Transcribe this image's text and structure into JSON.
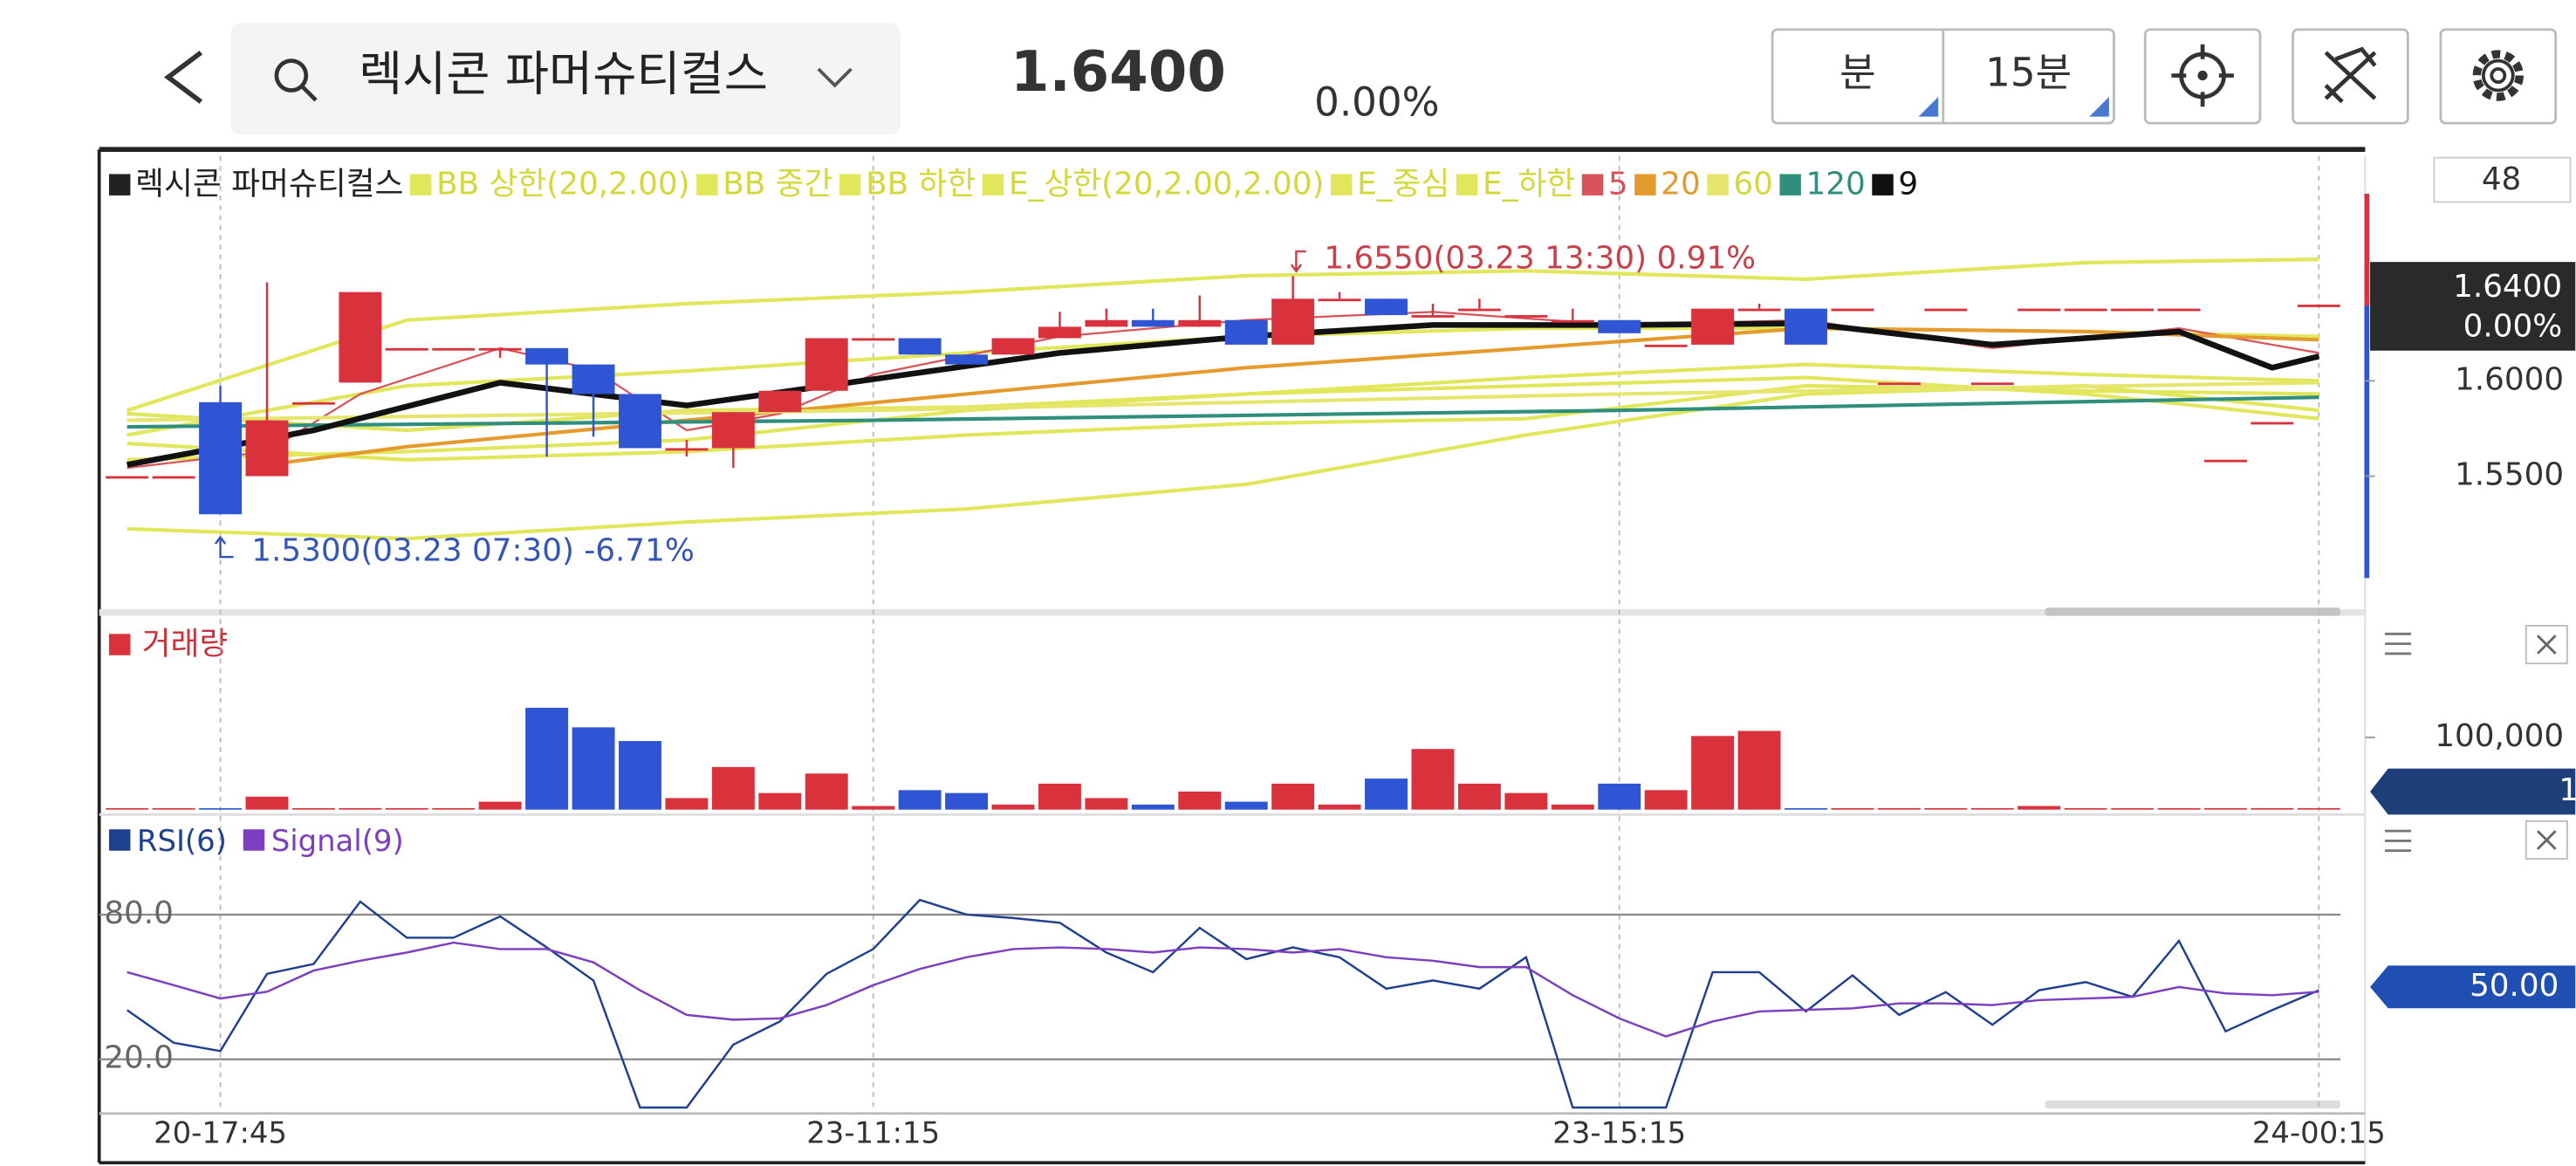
{
  "header": {
    "search": "렉시콘 파머슈티컬스",
    "price": "1.6400",
    "change": "0.00%",
    "unit": "분",
    "interval": "15분"
  },
  "chart_data": [
    {
      "type": "candlestick",
      "name": "렉시콘 파머슈티컬스",
      "count": "48",
      "color_up": "#d9323d",
      "color_down": "#2f55d4",
      "open": [
        1.55,
        1.55,
        1.5888,
        1.55,
        1.5888,
        1.5991,
        1.6172,
        1.6172,
        1.6172,
        1.6172,
        1.6086,
        1.5931,
        1.5647,
        1.5647,
        1.5836,
        1.5948,
        1.6224,
        1.6224,
        1.6138,
        1.6138,
        1.6224,
        1.6284,
        1.6319,
        1.6284,
        1.6319,
        1.619,
        1.6431,
        1.6431,
        1.6345,
        1.6379,
        1.6345,
        1.6319,
        1.6319,
        1.619,
        1.619,
        1.6379,
        1.6379,
        1.6379,
        1.5991,
        1.6379,
        1.5991,
        1.6379,
        1.6379,
        1.6379,
        1.6379,
        1.5586,
        1.5784,
        1.64
      ],
      "high": [
        1.55,
        1.55,
        1.5974,
        1.6517,
        1.5888,
        1.6466,
        1.6172,
        1.6172,
        1.6172,
        1.6172,
        1.6086,
        1.5931,
        1.569,
        1.5836,
        1.5948,
        1.6224,
        1.6224,
        1.6224,
        1.6138,
        1.6224,
        1.6362,
        1.6379,
        1.6379,
        1.6448,
        1.6319,
        1.655,
        1.6466,
        1.6431,
        1.6405,
        1.6431,
        1.6345,
        1.6379,
        1.6319,
        1.619,
        1.6379,
        1.6405,
        1.6379,
        1.6379,
        1.5991,
        1.6379,
        1.5991,
        1.6379,
        1.6379,
        1.6379,
        1.6379,
        1.5586,
        1.5784,
        1.64
      ],
      "low": [
        1.55,
        1.55,
        1.53,
        1.55,
        1.5888,
        1.5991,
        1.6172,
        1.6172,
        1.6121,
        1.5603,
        1.5707,
        1.5647,
        1.5603,
        1.5543,
        1.5836,
        1.5948,
        1.6224,
        1.6138,
        1.6086,
        1.6138,
        1.6224,
        1.6284,
        1.6284,
        1.6284,
        1.619,
        1.619,
        1.6431,
        1.6345,
        1.6345,
        1.6379,
        1.6345,
        1.6319,
        1.625,
        1.619,
        1.619,
        1.6379,
        1.619,
        1.6379,
        1.5991,
        1.6379,
        1.5991,
        1.6379,
        1.6379,
        1.6379,
        1.6379,
        1.5586,
        1.5784,
        1.64
      ],
      "close": [
        1.55,
        1.55,
        1.53,
        1.5793,
        1.5888,
        1.6466,
        1.6172,
        1.6172,
        1.6172,
        1.6086,
        1.5931,
        1.5647,
        1.5647,
        1.5836,
        1.5948,
        1.6224,
        1.6224,
        1.6138,
        1.6086,
        1.6224,
        1.6284,
        1.6319,
        1.6284,
        1.6319,
        1.619,
        1.6431,
        1.6431,
        1.6345,
        1.6345,
        1.6379,
        1.6345,
        1.6319,
        1.625,
        1.619,
        1.6379,
        1.6379,
        1.619,
        1.6379,
        1.5991,
        1.6379,
        1.5991,
        1.6379,
        1.6379,
        1.6379,
        1.6379,
        1.5586,
        1.5784,
        1.64
      ],
      "ylim": [
        1.481,
        1.718
      ],
      "yticks": [
        {
          "value": 1.55,
          "label": "1.5500"
        },
        {
          "value": 1.6,
          "label": "1.6000"
        }
      ],
      "last": {
        "value": 1.64,
        "label": "1.6400"
      },
      "last_change": "0.00%",
      "annotations": [
        {
          "text": "1.6550(03.23 13:30) 0.91%",
          "x": 25,
          "value": 1.655,
          "color": "#c8404a"
        },
        {
          "text": "1.5300(03.23 07:30) -6.71%",
          "x": 2,
          "value": 1.53,
          "color": "#3356b8"
        }
      ],
      "series": [
        {
          "name": "BB 상한(20,2.00)",
          "color": "#e2e65a",
          "x": [
            0,
            6,
            12,
            18,
            24,
            30,
            36,
            42,
            47
          ],
          "values": [
            1.5845,
            1.6319,
            1.6405,
            1.6466,
            1.6552,
            1.6578,
            1.6534,
            1.6621,
            1.6638
          ]
        },
        {
          "name": "BB 중간",
          "color": "#e2e65a",
          "x": [
            0,
            6,
            12,
            18,
            24,
            30,
            36,
            42,
            47
          ],
          "values": [
            1.5716,
            1.5974,
            1.6052,
            1.6147,
            1.6233,
            1.6276,
            1.6276,
            1.6259,
            1.6233
          ]
        },
        {
          "name": "BB 하한",
          "color": "#e2e65a",
          "x": [
            0,
            6,
            12,
            18,
            24,
            30,
            36,
            42,
            47
          ],
          "values": [
            1.5586,
            1.5629,
            1.569,
            1.5845,
            1.5931,
            1.5974,
            1.6017,
            1.5931,
            1.5802
          ]
        },
        {
          "name": "E_상한(20,2.00,2.00)",
          "color": "#e2e65a",
          "x": [
            0,
            6,
            12,
            18,
            24,
            30,
            36,
            42,
            47
          ],
          "values": [
            1.5828,
            1.5741,
            1.5845,
            1.5862,
            1.5931,
            1.6017,
            1.6086,
            1.6034,
            1.6
          ]
        },
        {
          "name": "E_중심",
          "color": "#e2e65a",
          "x": [
            0,
            6,
            12,
            18,
            24,
            30,
            36,
            42,
            47
          ],
          "values": [
            1.5672,
            1.5586,
            1.5629,
            1.5716,
            1.5776,
            1.5802,
            1.5974,
            1.5948,
            1.5931
          ]
        },
        {
          "name": "E_하한",
          "color": "#e2e65a",
          "x": [
            0,
            6,
            12,
            18,
            24,
            30,
            36,
            42,
            47
          ],
          "values": [
            1.5224,
            1.5172,
            1.5259,
            1.5328,
            1.5457,
            1.5716,
            1.5931,
            1.5974,
            1.5845
          ]
        },
        {
          "name": "5",
          "color": "#d9535a",
          "x": [
            0,
            3,
            5,
            8,
            10,
            12,
            14,
            16,
            20,
            24,
            28,
            32,
            36,
            40,
            44,
            47
          ],
          "values": [
            1.5543,
            1.5629,
            1.5931,
            1.6172,
            1.606,
            1.5741,
            1.5828,
            1.6034,
            1.6233,
            1.6319,
            1.6362,
            1.6293,
            1.6319,
            1.6172,
            1.6276,
            1.6147
          ]
        },
        {
          "name": "20",
          "color": "#e59a2e",
          "x": [
            3,
            6,
            12,
            18,
            24,
            30,
            36,
            42,
            47
          ],
          "values": [
            1.556,
            1.5655,
            1.5793,
            1.5931,
            1.6069,
            1.6172,
            1.6276,
            1.6259,
            1.6216
          ]
        },
        {
          "name": "60",
          "color": "#e6e66e",
          "x": [
            0,
            16,
            32,
            47
          ],
          "values": [
            1.5793,
            1.5845,
            1.5931,
            1.5991
          ]
        },
        {
          "name": "120",
          "color": "#2f8f7c",
          "x": [
            0,
            16,
            32,
            47
          ],
          "values": [
            1.5759,
            1.5793,
            1.5845,
            1.5914
          ]
        },
        {
          "name": "9",
          "color": "#111111",
          "x": [
            0,
            4,
            8,
            12,
            16,
            20,
            24,
            28,
            32,
            36,
            40,
            44,
            46,
            47
          ],
          "values": [
            1.556,
            1.5741,
            1.5991,
            1.5871,
            1.6009,
            1.6147,
            1.6233,
            1.6293,
            1.6293,
            1.6302,
            1.619,
            1.6259,
            1.6069,
            1.6129
          ]
        }
      ]
    },
    {
      "type": "bar",
      "name": "거래량",
      "color": "#d9323d",
      "values": [
        2000,
        2000,
        2000,
        18000,
        2000,
        2000,
        2000,
        2000,
        11000,
        141000,
        114000,
        95000,
        16000,
        59000,
        23000,
        50000,
        5000,
        27000,
        23000,
        7000,
        36000,
        16000,
        7000,
        25000,
        11000,
        36000,
        7000,
        43000,
        84000,
        36000,
        23000,
        7000,
        36000,
        27000,
        102000,
        109000,
        2000,
        2000,
        2000,
        2000,
        2000,
        5000,
        2000,
        2000,
        2000,
        2000,
        2000,
        2000
      ],
      "ylim": [
        0,
        257000
      ],
      "yticks": [
        {
          "value": 100000,
          "label": "100,000"
        }
      ],
      "last_label": "1"
    },
    {
      "type": "line",
      "categories": [
        null,
        null,
        "20-17:45",
        null,
        null,
        null,
        null,
        null,
        null,
        null,
        null,
        null,
        null,
        null,
        null,
        null,
        "23-11:15",
        null,
        null,
        null,
        null,
        null,
        null,
        null,
        null,
        null,
        null,
        null,
        null,
        null,
        null,
        null,
        "23-15:15",
        null,
        null,
        null,
        null,
        null,
        null,
        null,
        null,
        null,
        null,
        null,
        null,
        null,
        null,
        "24-00:15"
      ],
      "ylim": [
        -1.8,
        118.8
      ],
      "yticks": [
        {
          "value": 20,
          "label": "20.0"
        },
        {
          "value": 80,
          "label": "80.0"
        }
      ],
      "last": {
        "value": 50,
        "label": "50.00"
      },
      "series": [
        {
          "name": "RSI(6)",
          "color": "#1f3f8f",
          "values": [
            40.4,
            26.8,
            23.4,
            55.4,
            59.5,
            85.4,
            70.4,
            70.4,
            79.3,
            66.4,
            52.7,
            0,
            0,
            26.1,
            35.7,
            55.4,
            65.7,
            86.1,
            80,
            78.6,
            76.6,
            64.3,
            56.1,
            74.5,
            61.6,
            66.4,
            62.3,
            49.3,
            52.7,
            49.3,
            62.3,
            0,
            0,
            0,
            56.1,
            56.1,
            39.8,
            54.8,
            38.4,
            47.9,
            34.3,
            48.6,
            52,
            45.9,
            69.1,
            31.6,
            40.4,
            48.6
          ]
        },
        {
          "name": "Signal(9)",
          "color": "#7b3fbf",
          "values": [
            56.1,
            50.7,
            45.2,
            48,
            56.8,
            60.9,
            64.3,
            68.4,
            65.7,
            65.7,
            60.2,
            48.6,
            38.4,
            36.4,
            37,
            42.5,
            50.7,
            57.5,
            62.3,
            65.7,
            66.4,
            65.7,
            64.3,
            66.4,
            65.7,
            64.3,
            65.7,
            62.3,
            60.9,
            58.2,
            58.2,
            46.6,
            37,
            29.5,
            35.7,
            39.8,
            40.5,
            41.1,
            43.2,
            43.2,
            42.5,
            44.5,
            45.2,
            45.9,
            50,
            47.3,
            46.6,
            48
          ]
        }
      ]
    }
  ]
}
